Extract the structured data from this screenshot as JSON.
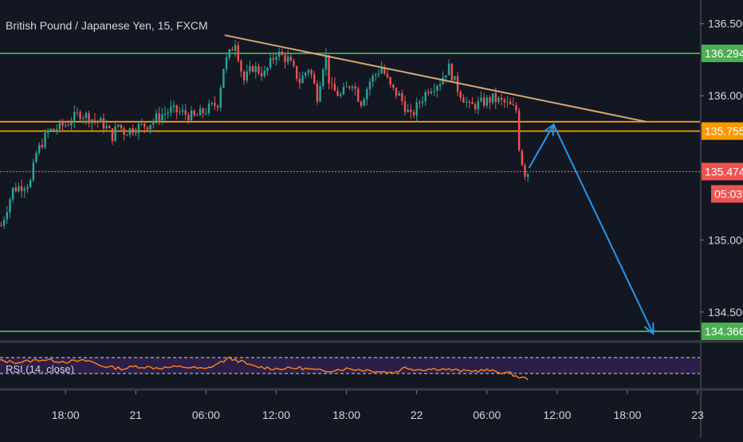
{
  "chart_data": {
    "type": "candlestick",
    "title": "British Pound / Japanese Yen, 15, FXCM",
    "symbol": "British Pound / Japanese Yen",
    "interval": "15",
    "source": "FXCM",
    "ylim": [
      134.3,
      136.62
    ],
    "y_ticks": [
      "136.500",
      "136.000",
      "135.000",
      "134.500"
    ],
    "x_ticks": [
      {
        "label": "18:00",
        "t": 6
      },
      {
        "label": "21",
        "t": 12
      },
      {
        "label": "06:00",
        "t": 18
      },
      {
        "label": "12:00",
        "t": 24
      },
      {
        "label": "18:00",
        "t": 30
      },
      {
        "label": "22",
        "t": 36
      },
      {
        "label": "06:00",
        "t": 42
      },
      {
        "label": "12:00",
        "t": 48
      },
      {
        "label": "18:00",
        "t": 54
      },
      {
        "label": "23",
        "t": 60
      }
    ],
    "xlim": [
      0.4,
      60.2
    ],
    "price_path": [
      [
        0.5,
        135.1
      ],
      [
        1.5,
        135.35
      ],
      [
        3,
        135.4
      ],
      [
        3.5,
        135.6
      ],
      [
        4.5,
        135.75
      ],
      [
        6,
        135.8
      ],
      [
        7.2,
        135.88
      ],
      [
        8,
        135.85
      ],
      [
        9.3,
        135.8
      ],
      [
        10,
        135.72
      ],
      [
        10.5,
        135.8
      ],
      [
        11,
        135.75
      ],
      [
        12,
        135.78
      ],
      [
        13,
        135.8
      ],
      [
        14,
        135.86
      ],
      [
        15,
        135.9
      ],
      [
        16,
        135.88
      ],
      [
        17,
        135.85
      ],
      [
        18,
        135.9
      ],
      [
        19,
        135.95
      ],
      [
        19.5,
        136.2
      ],
      [
        20.5,
        136.38
      ],
      [
        21.2,
        136.1
      ],
      [
        22,
        136.2
      ],
      [
        23,
        136.15
      ],
      [
        24,
        136.3
      ],
      [
        25,
        136.25
      ],
      [
        26,
        136.1
      ],
      [
        26.8,
        136.2
      ],
      [
        27.5,
        136.0
      ],
      [
        28.2,
        136.3
      ],
      [
        28.6,
        136.05
      ],
      [
        29.5,
        136.0
      ],
      [
        30.5,
        136.1
      ],
      [
        31.2,
        135.95
      ],
      [
        32,
        136.1
      ],
      [
        33,
        136.2
      ],
      [
        33.8,
        136.05
      ],
      [
        34.5,
        136.0
      ],
      [
        35.5,
        135.85
      ],
      [
        36.2,
        135.95
      ],
      [
        37,
        136.05
      ],
      [
        38,
        136.1
      ],
      [
        38.7,
        136.2
      ],
      [
        39.5,
        136.05
      ],
      [
        40.5,
        135.92
      ],
      [
        41.5,
        135.95
      ],
      [
        42.5,
        135.98
      ],
      [
        43.5,
        135.95
      ],
      [
        44.5,
        135.9
      ],
      [
        44.8,
        135.6
      ],
      [
        45.3,
        135.45
      ],
      [
        45.5,
        135.47
      ]
    ],
    "horizontal_levels": [
      {
        "value": 136.294,
        "color": "#4caf50",
        "style": "solid",
        "label": "136.294"
      },
      {
        "value": 135.82,
        "color": "#ff9800",
        "style": "solid"
      },
      {
        "value": 135.755,
        "color": "#ff9800",
        "style": "solid",
        "label": "135.755"
      },
      {
        "value": 135.474,
        "color": "#ef5350",
        "style": "dotted",
        "label": "135.474"
      },
      {
        "value": 134.366,
        "color": "#4caf50",
        "style": "solid",
        "label": "134.366"
      }
    ],
    "trend_line": {
      "from": [
        19.6,
        136.42
      ],
      "to": [
        55.6,
        135.82
      ],
      "color": "#d9a673"
    },
    "projection": {
      "color": "#2196f3",
      "points": [
        [
          45.6,
          135.5
        ],
        [
          47.7,
          135.8
        ],
        [
          56.2,
          134.35
        ]
      ]
    },
    "countdown": "05:03",
    "countdown_color": "#ef5350",
    "rsi": {
      "label": "RSI (14, close)",
      "period": 14,
      "upper_band": 70,
      "lower_band": 30,
      "color": "#f57f17",
      "band_fill": "#2b1f48",
      "path": [
        [
          0,
          63
        ],
        [
          2,
          58
        ],
        [
          4,
          65
        ],
        [
          6,
          60
        ],
        [
          8,
          62
        ],
        [
          9,
          50
        ],
        [
          10,
          45
        ],
        [
          11,
          42
        ],
        [
          12,
          48
        ],
        [
          14,
          44
        ],
        [
          16,
          47
        ],
        [
          18,
          41
        ],
        [
          19,
          55
        ],
        [
          20,
          68
        ],
        [
          21,
          60
        ],
        [
          22,
          48
        ],
        [
          24,
          42
        ],
        [
          26,
          44
        ],
        [
          28,
          36
        ],
        [
          30,
          42
        ],
        [
          32,
          38
        ],
        [
          34,
          32
        ],
        [
          35,
          45
        ],
        [
          36,
          40
        ],
        [
          38,
          42
        ],
        [
          40,
          36
        ],
        [
          42,
          38
        ],
        [
          44,
          30
        ],
        [
          44.8,
          20
        ],
        [
          45.5,
          17
        ]
      ]
    }
  }
}
